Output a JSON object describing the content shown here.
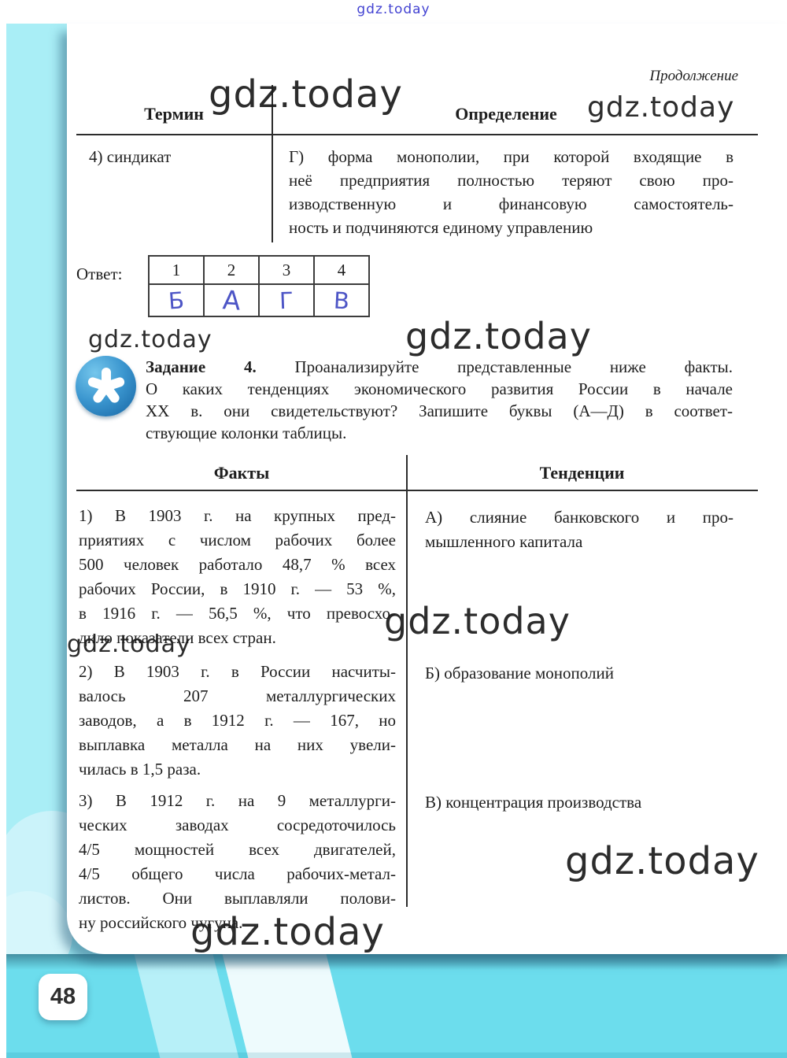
{
  "watermark": {
    "text": "gdz.today"
  },
  "page": {
    "number": "48",
    "continuation": "Продолжение"
  },
  "term_table": {
    "col1_header": "Термин",
    "col2_header": "Определение",
    "row": {
      "term": "4) синдикат",
      "definition_lines": [
        "Г) форма монополии, при которой входящие в",
        "неё предприятия полностью теряют свою про-",
        "изводственную и финансовую самостоятель-",
        "ность и подчиняются единому управлению"
      ]
    }
  },
  "answer": {
    "label": "Ответ:",
    "columns": [
      "1",
      "2",
      "3",
      "4"
    ],
    "letters": [
      "Б",
      "А",
      "Г",
      "В"
    ]
  },
  "task": {
    "label": "Задание 4.",
    "line1_rest": " Проанализируйте представленные ниже факты.",
    "rest_lines": [
      "О каких тенденциях экономического развития России в начале",
      "XX в. они свидетельствуют? Запишите буквы (А—Д) в соответ-",
      "ствующие колонки таблицы."
    ],
    "icon": "asterisk-icon"
  },
  "facts_table": {
    "col1_header": "Факты",
    "col2_header": "Тенденции",
    "rows": [
      {
        "fact_lines": [
          "1) В 1903 г. на крупных пред-",
          "приятиях с числом рабочих более",
          "500 человек работало 48,7 % всех",
          "рабочих России, в 1910 г. — 53 %,",
          "в 1916 г. — 56,5 %, что превосхо-",
          "дило показатели всех стран."
        ],
        "tendency_lines": [
          "А) слияние банковского и про-",
          "мышленного капитала"
        ]
      },
      {
        "fact_lines": [
          "2) В 1903 г. в России насчиты-",
          "валось 207 металлургических",
          "заводов, а в 1912 г. — 167, но",
          "выплавка металла на них увели-",
          "чилась в 1,5 раза."
        ],
        "tendency_lines": [
          "Б) образование монополий"
        ]
      },
      {
        "fact_lines": [
          "3) В 1912 г. на 9 металлурги-",
          "ческих заводах сосредоточилось",
          "4/5 мощностей всех двигателей,",
          "4/5 общего числа рабочих-метал-",
          "листов. Они выплавляли полови-",
          "ну российского чугуна."
        ],
        "tendency_lines": [
          "В) концентрация производства"
        ]
      }
    ]
  },
  "colors": {
    "accent_cyan": "#6cdded",
    "stripe_cyan": "#a9eef6",
    "icon_blue": "#2e86c4",
    "handwriting_ink": "#4d55c6",
    "watermark_link_blue": "#4343d2"
  }
}
